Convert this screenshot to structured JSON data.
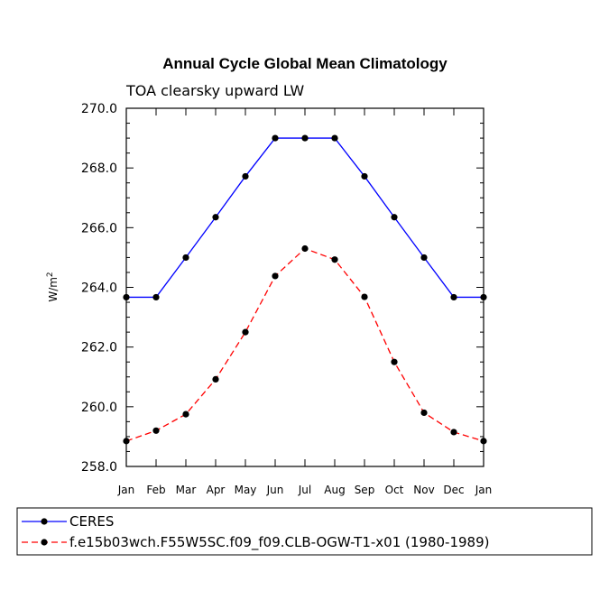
{
  "chart_data": {
    "type": "line",
    "title": "Annual Cycle Global Mean Climatology",
    "subtitle": "TOA clearsky upward LW",
    "xlabel": "",
    "ylabel": "W/m",
    "ylabel_superscript": "2",
    "categories": [
      "Jan",
      "Feb",
      "Mar",
      "Apr",
      "May",
      "Jun",
      "Jul",
      "Aug",
      "Sep",
      "Oct",
      "Nov",
      "Dec",
      "Jan"
    ],
    "ylim": [
      258.0,
      270.0
    ],
    "yticks": [
      258.0,
      260.0,
      262.0,
      264.0,
      266.0,
      268.0,
      270.0
    ],
    "ytick_labels": [
      "258.0",
      "260.0",
      "262.0",
      "264.0",
      "266.0",
      "268.0",
      "270.0"
    ],
    "grid": false,
    "legend_position": "bottom-left",
    "series": [
      {
        "name": "CERES",
        "color": "#0000ff",
        "dash": "solid",
        "values": [
          263.67,
          263.67,
          265.0,
          266.35,
          267.72,
          269.0,
          269.0,
          269.0,
          267.72,
          266.35,
          265.0,
          263.67,
          263.67
        ]
      },
      {
        "name": "f.e15b03wch.F55W5SC.f09_f09.CLB-OGW-T1-x01 (1980-1989)",
        "color": "#ff0000",
        "dash": "dashed",
        "values": [
          258.85,
          259.2,
          259.75,
          260.92,
          262.5,
          264.38,
          265.3,
          264.93,
          263.68,
          261.5,
          259.8,
          259.15,
          258.85
        ]
      }
    ]
  }
}
